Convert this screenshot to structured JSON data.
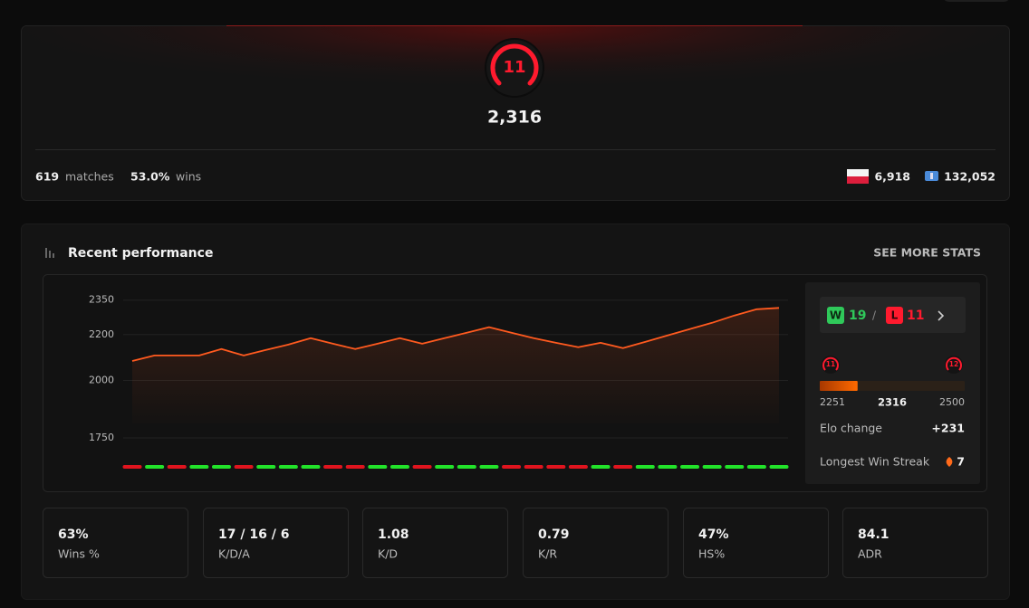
{
  "profile": {
    "level": 11,
    "elo": "2,316",
    "matches": 619,
    "matches_label": "matches",
    "win_rate": "53.0%",
    "wins_label": "wins",
    "country_rank": "6,918",
    "region_rank": "132,052"
  },
  "performance": {
    "title": "Recent performance",
    "link": "SEE MORE STATS",
    "chart_data": {
      "type": "line",
      "values": [
        2085,
        2109,
        2109,
        2109,
        2137,
        2109,
        2133,
        2156,
        2184,
        2160,
        2137,
        2160,
        2184,
        2160,
        2184,
        2208,
        2232,
        2208,
        2184,
        2164,
        2145,
        2164,
        2141,
        2168,
        2196,
        2224,
        2251,
        2283,
        2310,
        2316
      ],
      "color": "#ff5a1f",
      "ylim": [
        1720,
        2400
      ],
      "yticks": [
        1750,
        2000,
        2200,
        2350
      ],
      "grid": true,
      "results": [
        0,
        1,
        0,
        1,
        1,
        0,
        1,
        1,
        1,
        0,
        0,
        1,
        1,
        0,
        1,
        1,
        1,
        0,
        0,
        0,
        0,
        1,
        0,
        1,
        1,
        1,
        1,
        1,
        1,
        1
      ],
      "win_color": "#22e32a",
      "loss_color": "#e0141e"
    },
    "record": {
      "win_badge": "W",
      "wins": 19,
      "loss_badge": "L",
      "losses": 11
    },
    "progress": {
      "min_level": 11,
      "max_level": 12,
      "min": 2251,
      "current": 2316,
      "max": 2500
    },
    "elo_change": {
      "label": "Elo change",
      "value": "+231"
    },
    "streak": {
      "label": "Longest Win Streak",
      "value": 7
    }
  },
  "stats": [
    {
      "value": "63%",
      "label": "Wins %"
    },
    {
      "value": "17 / 16 / 6",
      "label": "K/D/A"
    },
    {
      "value": "1.08",
      "label": "K/D"
    },
    {
      "value": "0.79",
      "label": "K/R"
    },
    {
      "value": "47%",
      "label": "HS%"
    },
    {
      "value": "84.1",
      "label": "ADR"
    }
  ]
}
